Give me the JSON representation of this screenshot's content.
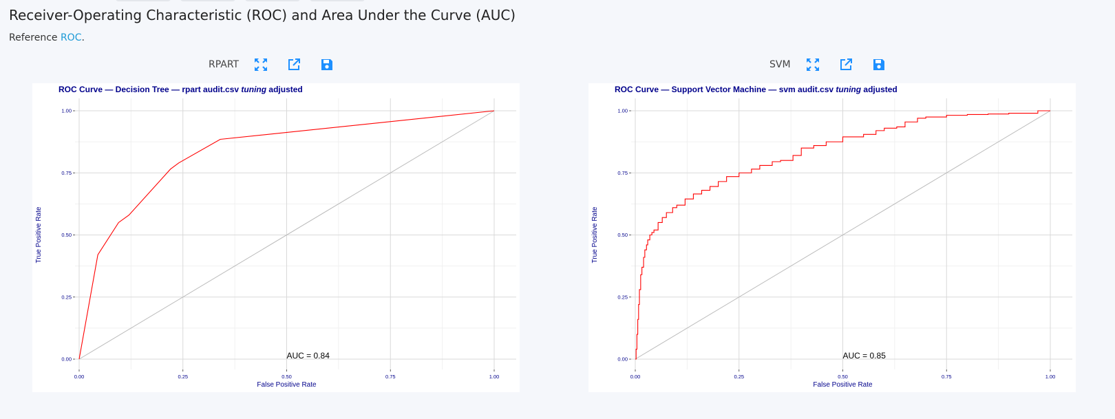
{
  "page": {
    "title": "Receiver-Operating Characteristic (ROC) and Area Under the Curve (AUC)",
    "reference_prefix": "Reference ",
    "reference_link": "ROC",
    "reference_suffix": "."
  },
  "panels": [
    {
      "label": "RPART",
      "icons": [
        "expand-icon",
        "open-external-icon",
        "save-icon"
      ],
      "chart": {
        "title_parts": [
          "ROC Curve — Decision Tree — rpart audit.csv ",
          "tuning",
          " adjusted"
        ],
        "auc_label": "AUC = 0.84"
      }
    },
    {
      "label": "SVM",
      "icons": [
        "expand-icon",
        "open-external-icon",
        "save-icon"
      ],
      "chart": {
        "title_parts": [
          "ROC Curve — Support Vector Machine — svm audit.csv ",
          "tuning",
          " adjusted"
        ],
        "auc_label": "AUC = 0.85"
      }
    }
  ],
  "colors": {
    "accent": "#1e90ff",
    "curve": "#ff0000",
    "diagonal": "#bbbbbb",
    "text_dark_blue": "#00008b",
    "link": "#1c9ad6"
  },
  "chart_data": [
    {
      "type": "line",
      "title": "ROC Curve — Decision Tree — rpart audit.csv tuning adjusted",
      "xlabel": "False Positive Rate",
      "ylabel": "True Positive Rate",
      "xlim": [
        0,
        1
      ],
      "ylim": [
        0,
        1
      ],
      "xticks": [
        "0.00",
        "0.25",
        "0.50",
        "0.75",
        "1.00"
      ],
      "yticks": [
        "0.00",
        "0.25",
        "0.50",
        "0.75",
        "1.00"
      ],
      "grid": true,
      "annotation": "AUC = 0.84",
      "series": [
        {
          "x": [
            0,
            0.045,
            0.095,
            0.12,
            0.22,
            0.24,
            0.34,
            1.0
          ],
          "y": [
            0,
            0.42,
            0.55,
            0.58,
            0.765,
            0.79,
            0.885,
            1.0
          ]
        }
      ],
      "reference_line": {
        "x": [
          0,
          1
        ],
        "y": [
          0,
          1
        ]
      }
    },
    {
      "type": "line",
      "title": "ROC Curve — Support Vector Machine — svm audit.csv tuning adjusted",
      "xlabel": "False Positive Rate",
      "ylabel": "True Positive Rate",
      "xlim": [
        0,
        1
      ],
      "ylim": [
        0,
        1
      ],
      "xticks": [
        "0.00",
        "0.25",
        "0.50",
        "0.75",
        "1.00"
      ],
      "yticks": [
        "0.00",
        "0.25",
        "0.50",
        "0.75",
        "1.00"
      ],
      "grid": true,
      "annotation": "AUC = 0.85",
      "series": [
        {
          "x": [
            0,
            0.002,
            0.004,
            0.006,
            0.008,
            0.01,
            0.013,
            0.016,
            0.02,
            0.023,
            0.027,
            0.03,
            0.035,
            0.04,
            0.045,
            0.055,
            0.065,
            0.075,
            0.09,
            0.1,
            0.12,
            0.14,
            0.16,
            0.18,
            0.2,
            0.22,
            0.25,
            0.28,
            0.3,
            0.33,
            0.35,
            0.38,
            0.4,
            0.43,
            0.46,
            0.5,
            0.55,
            0.58,
            0.6,
            0.63,
            0.65,
            0.68,
            0.7,
            0.75,
            0.8,
            0.85,
            0.9,
            0.95,
            0.97,
            1.0
          ],
          "y": [
            0,
            0.04,
            0.1,
            0.16,
            0.22,
            0.28,
            0.34,
            0.37,
            0.41,
            0.44,
            0.46,
            0.48,
            0.5,
            0.51,
            0.52,
            0.55,
            0.57,
            0.59,
            0.61,
            0.62,
            0.645,
            0.665,
            0.68,
            0.695,
            0.715,
            0.735,
            0.75,
            0.765,
            0.78,
            0.795,
            0.8,
            0.82,
            0.85,
            0.86,
            0.875,
            0.895,
            0.905,
            0.92,
            0.93,
            0.935,
            0.955,
            0.97,
            0.975,
            0.982,
            0.985,
            0.987,
            0.99,
            0.99,
            1.0,
            1.0
          ]
        }
      ],
      "reference_line": {
        "x": [
          0,
          1
        ],
        "y": [
          0,
          1
        ]
      }
    }
  ]
}
